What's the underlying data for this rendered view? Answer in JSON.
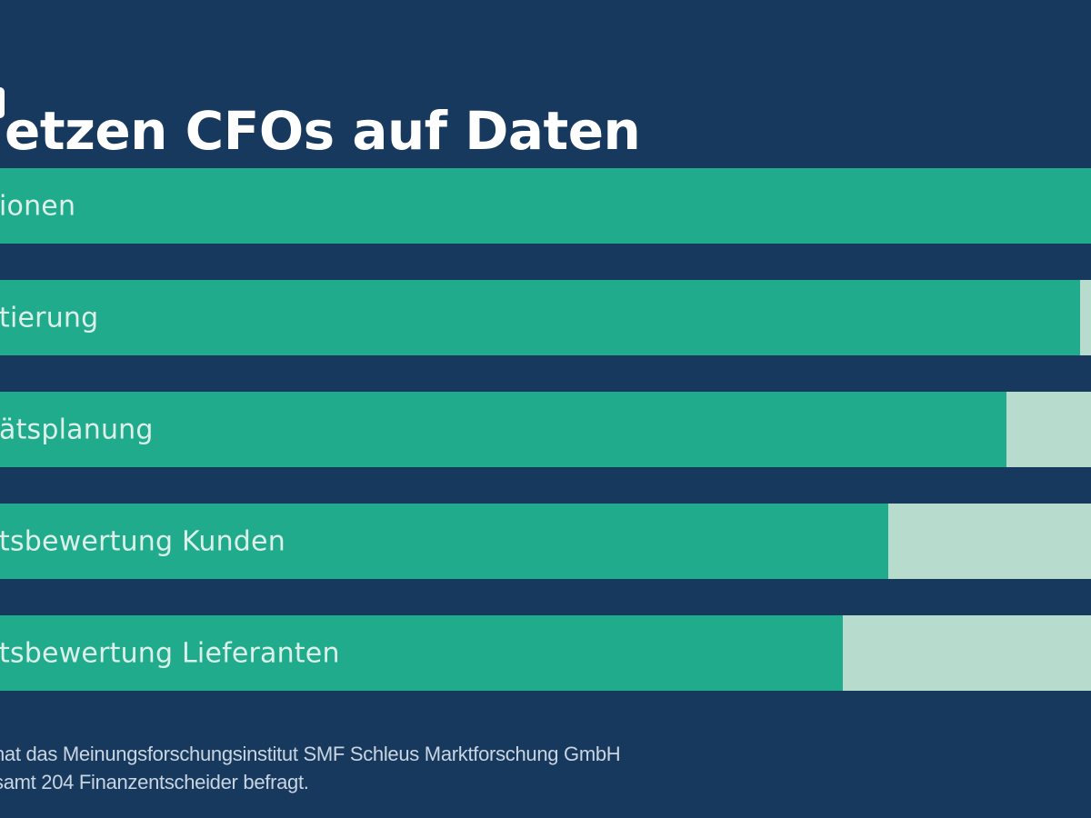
{
  "colors": {
    "background": "#17395E",
    "bar_filled": "#1FAB8C",
    "bar_remainder": "#B7DCCD",
    "title_text": "#FFFFFF",
    "label_text": "#DCF0E9",
    "footer_text": "#C9D6E2"
  },
  "header": {
    "title_fragment": "etzen CFOs auf Daten"
  },
  "footer": {
    "line1": "hat das Meinungsforschungsinstitut SMF Schleus Marktforschung GmbH",
    "line2": "samt 204 Finanzentscheider befragt."
  },
  "chart_data": {
    "type": "bar",
    "orientation": "horizontal",
    "title": "etzen CFOs auf Daten",
    "categories": [
      "ionen",
      "tierung",
      "ätsplanung",
      "tsbewertung Kunden",
      "tsbewertung Lieferanten"
    ],
    "series": [
      {
        "name": "filled",
        "values_fraction_of_visible_width": [
          1.0,
          0.99,
          0.9225,
          0.814,
          0.7725
        ]
      },
      {
        "name": "remainder",
        "values_fraction_of_visible_width": [
          0.0,
          0.01,
          0.0775,
          0.186,
          0.2275
        ]
      }
    ],
    "axis_visible": false,
    "grid": false,
    "legend": false,
    "note_visible_values_only": "chart cropped at left edge; no numeric axis or data labels visible"
  }
}
